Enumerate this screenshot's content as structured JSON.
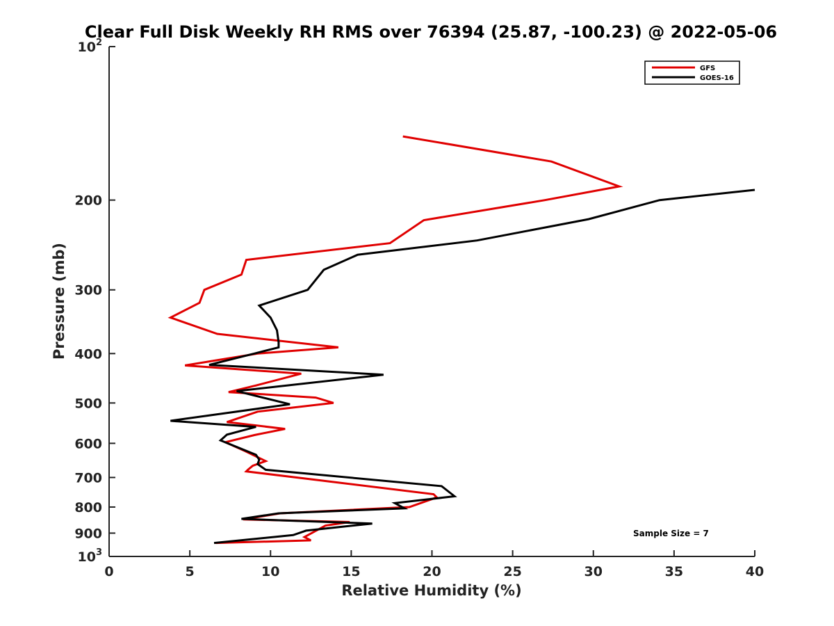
{
  "chart_data": {
    "type": "line",
    "title": "Clear Full Disk Weekly RH RMS over 76394 (25.87, -100.23) @ 2022-05-06",
    "xlabel": "Relative Humidity (%)",
    "ylabel": "Pressure (mb)",
    "xlim": [
      0,
      40
    ],
    "ylim": [
      1000,
      100
    ],
    "y_scale": "log",
    "y_reversed": true,
    "x_ticks": [
      "0",
      "5",
      "10",
      "15",
      "20",
      "25",
      "30",
      "35",
      "40"
    ],
    "y_ticks": [
      {
        "value": 100,
        "base": "10",
        "exp": "2"
      },
      {
        "value": 200,
        "base": "200",
        "exp": ""
      },
      {
        "value": 300,
        "base": "300",
        "exp": ""
      },
      {
        "value": 400,
        "base": "400",
        "exp": ""
      },
      {
        "value": 500,
        "base": "500",
        "exp": ""
      },
      {
        "value": 600,
        "base": "600",
        "exp": ""
      },
      {
        "value": 700,
        "base": "700",
        "exp": ""
      },
      {
        "value": 800,
        "base": "800",
        "exp": ""
      },
      {
        "value": 900,
        "base": "900",
        "exp": ""
      },
      {
        "value": 1000,
        "base": "10",
        "exp": "3"
      }
    ],
    "legend_position": "top-right",
    "grid": false,
    "annotation": "Sample Size = 7",
    "series": [
      {
        "name": "GFS",
        "color": "#e00000",
        "points": [
          [
            18.2,
            150
          ],
          [
            27.4,
            168
          ],
          [
            31.6,
            188
          ],
          [
            27.0,
            200
          ],
          [
            19.5,
            219
          ],
          [
            17.4,
            243
          ],
          [
            8.5,
            262
          ],
          [
            8.2,
            280
          ],
          [
            5.9,
            300
          ],
          [
            5.6,
            318
          ],
          [
            3.8,
            340
          ],
          [
            6.7,
            366
          ],
          [
            14.2,
            389
          ],
          [
            9.2,
            400
          ],
          [
            4.7,
            422
          ],
          [
            11.9,
            438
          ],
          [
            9.1,
            462
          ],
          [
            7.4,
            476
          ],
          [
            12.8,
            488
          ],
          [
            13.9,
            500
          ],
          [
            9.2,
            520
          ],
          [
            7.3,
            545
          ],
          [
            10.9,
            562
          ],
          [
            9.0,
            578
          ],
          [
            7.2,
            597
          ],
          [
            8.4,
            621
          ],
          [
            9.7,
            650
          ],
          [
            8.9,
            664
          ],
          [
            8.6,
            676
          ],
          [
            8.5,
            681
          ],
          [
            20.1,
            755
          ],
          [
            20.3,
            766
          ],
          [
            18.6,
            800
          ],
          [
            10.6,
            823
          ],
          [
            8.3,
            846
          ],
          [
            14.9,
            856
          ],
          [
            13.4,
            870
          ],
          [
            12.1,
            916
          ],
          [
            12.5,
            930
          ],
          [
            6.6,
            941
          ]
        ]
      },
      {
        "name": "GOES-16",
        "color": "#000000",
        "points": [
          [
            40.0,
            191
          ],
          [
            34.1,
            200
          ],
          [
            29.7,
            218
          ],
          [
            22.8,
            240
          ],
          [
            15.4,
            256
          ],
          [
            13.3,
            274
          ],
          [
            12.3,
            300
          ],
          [
            9.3,
            322
          ],
          [
            10.0,
            340
          ],
          [
            10.4,
            360
          ],
          [
            10.5,
            380
          ],
          [
            10.5,
            389
          ],
          [
            9.0,
            400
          ],
          [
            6.2,
            421
          ],
          [
            17.0,
            440
          ],
          [
            7.9,
            474
          ],
          [
            11.2,
            503
          ],
          [
            3.8,
            542
          ],
          [
            9.1,
            557
          ],
          [
            7.3,
            577
          ],
          [
            6.9,
            592
          ],
          [
            9.1,
            632
          ],
          [
            9.3,
            646
          ],
          [
            9.2,
            659
          ],
          [
            9.7,
            676
          ],
          [
            20.6,
            728
          ],
          [
            21.4,
            762
          ],
          [
            17.7,
            786
          ],
          [
            18.3,
            805
          ],
          [
            10.5,
            823
          ],
          [
            8.2,
            844
          ],
          [
            16.3,
            862
          ],
          [
            12.2,
            890
          ],
          [
            11.4,
            908
          ],
          [
            6.5,
            941
          ]
        ]
      }
    ]
  }
}
